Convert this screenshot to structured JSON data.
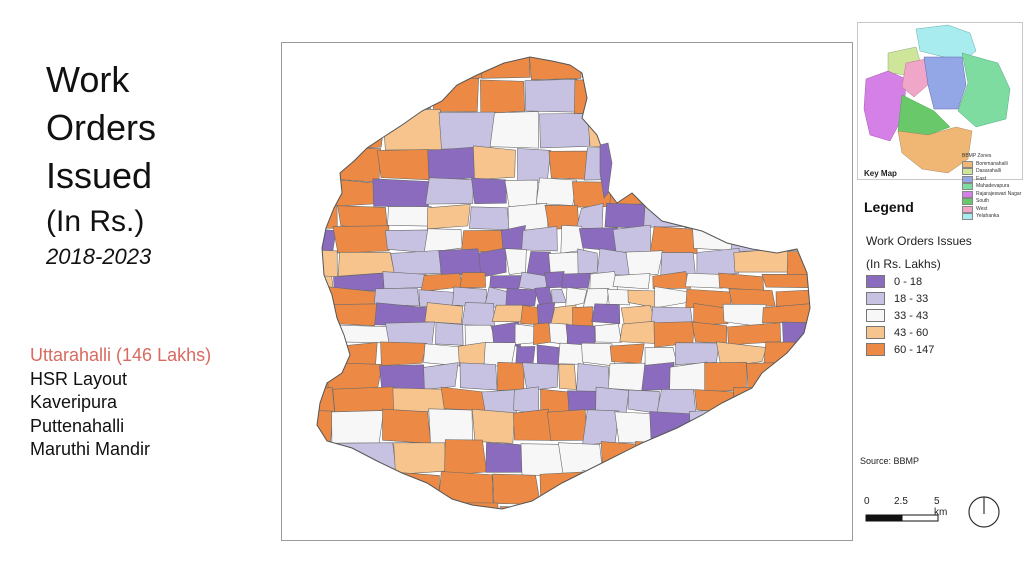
{
  "title": {
    "line1": "Work",
    "line2": "Orders",
    "line3": "Issued",
    "line4": "(In Rs.)",
    "years": "2018-2023"
  },
  "highlights": [
    {
      "label": "Uttarahalli (146 Lakhs)",
      "highlight": true
    },
    {
      "label": "HSR Layout",
      "highlight": false
    },
    {
      "label": "Kaveripura",
      "highlight": false
    },
    {
      "label": "Puttenahalli",
      "highlight": false
    },
    {
      "label": "Maruthi Mandir",
      "highlight": false
    }
  ],
  "highlight_color": "#d86a60",
  "key_map": {
    "label": "Key Map",
    "zones_title": "BBMP Zones",
    "zones": [
      {
        "name": "Bommanahalli",
        "color": "#f0b774"
      },
      {
        "name": "Dasarahalli",
        "color": "#cfe59a"
      },
      {
        "name": "East",
        "color": "#93a6e6"
      },
      {
        "name": "Mahadevapura",
        "color": "#7fdca0"
      },
      {
        "name": "Rajarajeswari Nagar",
        "color": "#d480e6"
      },
      {
        "name": "South",
        "color": "#69c96a"
      },
      {
        "name": "West",
        "color": "#f0a6c8"
      },
      {
        "name": "Yelahanka",
        "color": "#a9ecf0"
      }
    ]
  },
  "legend": {
    "title": "Legend",
    "subtitle_line1": "Work Orders Issues",
    "subtitle_line2": "(In Rs. Lakhs)",
    "classes": [
      {
        "label": "0 - 18",
        "color": "#8a6bbd"
      },
      {
        "label": "18 - 33",
        "color": "#c7c2e2"
      },
      {
        "label": "33 - 43",
        "color": "#f7f7f7"
      },
      {
        "label": "43 - 60",
        "color": "#f8c48e"
      },
      {
        "label": "60 - 147",
        "color": "#ec8a45"
      }
    ]
  },
  "source": "Source: BBMP",
  "scale_bar": {
    "labels": [
      "0",
      "2.5",
      "5 km"
    ]
  }
}
